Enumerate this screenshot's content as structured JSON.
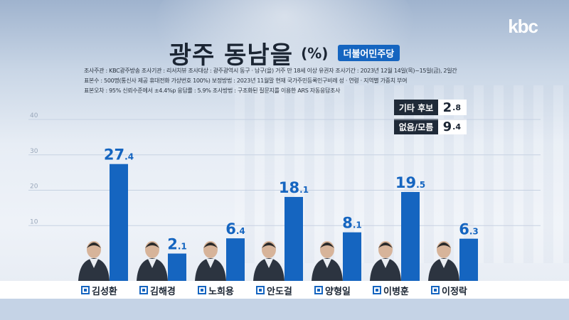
{
  "brand": {
    "logo_text": "kbc"
  },
  "header": {
    "title": "광주 동남을",
    "unit": "(%)",
    "party": "더불어민주당"
  },
  "meta": {
    "line1": "조사주관 : KBC광주방송   조사기관 : 리서치뷰   조사대상 : 광주광역시 동구 · 남구(을) 거주 만 18세 이상 유권자   조사기간 : 2023년 12월 14일(목)~15일(금), 2일간",
    "line2": "표본수 : 500명(통신사 제공 휴대전화 가상번호 100%)   보정방법 : 2023년 11월말 현재 국가주민등록인구비례 성 · 연령 · 지역별 가중치 부여",
    "line3": "표본오차 : 95% 신뢰수준에서 ±4.4%p   응답률 : 5.9%   조사방법 : 구조화된 질문지를 이용한 ARS 자동응답조사"
  },
  "side_stats": [
    {
      "label": "기타 후보",
      "value_int": "2",
      "value_dec": ".8"
    },
    {
      "label": "없음/모름",
      "value_int": "9",
      "value_dec": ".4"
    }
  ],
  "colors": {
    "bar": "#1565c0",
    "value_text": "#1565c0",
    "dark": "#1f2a38"
  },
  "chart_data": {
    "type": "bar",
    "title": "광주 동남을",
    "categories": [
      "김성환",
      "김해경",
      "노희용",
      "안도걸",
      "양형일",
      "이병훈",
      "이정락"
    ],
    "series": [
      {
        "values": [
          27.4,
          2.1,
          6.4,
          18.1,
          8.1,
          19.5,
          6.3
        ]
      }
    ],
    "yticks": [
      10,
      20,
      30,
      40
    ],
    "ylim": [
      0,
      40
    ],
    "grid": true,
    "xlabel": "",
    "ylabel": ""
  }
}
